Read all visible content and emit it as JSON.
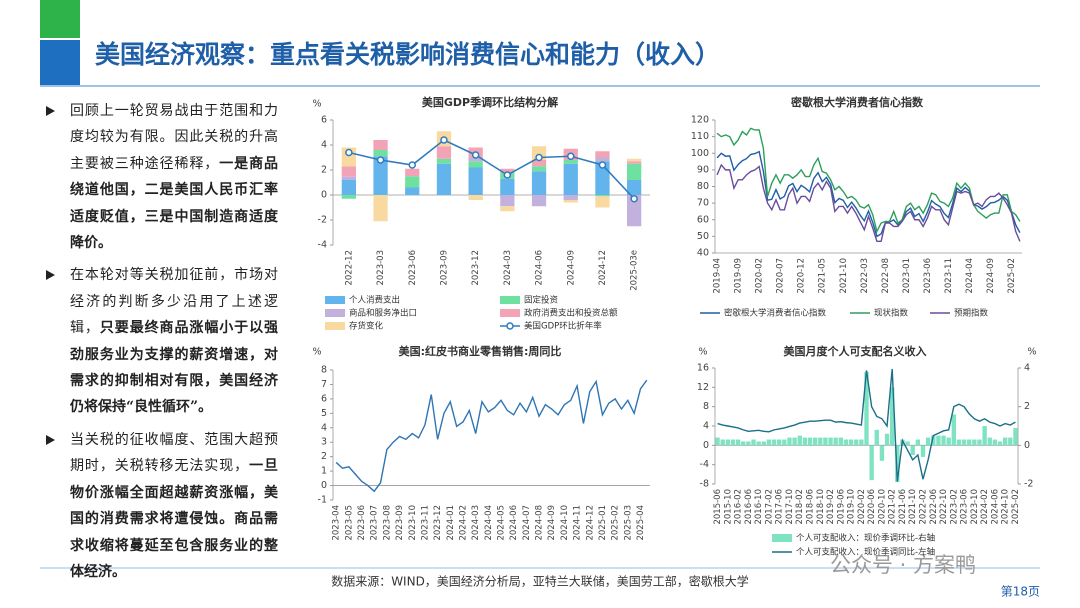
{
  "title": "美国经济观察：重点看关税影响消费信心和能力（收入）",
  "bullets": [
    {
      "runs": [
        {
          "text": "回顾上一轮贸易战由于范围和力度均较为有限。因此关税的升高主要被三种途径稀释，",
          "bold": false
        },
        {
          "text": "一是商品绕道他国，二是美国人民币汇率适度贬值，三是中国制造商适度降价。",
          "bold": true
        }
      ]
    },
    {
      "runs": [
        {
          "text": "在本轮对等关税加征前，市场对经济的判断多少沿用了上述逻辑，",
          "bold": false
        },
        {
          "text": "只要最终商品涨幅小于以强劲服务业为支撑的薪资增速，对需求的抑制相对有限，美国经济仍将保持“良性循环”。",
          "bold": true
        }
      ]
    },
    {
      "runs": [
        {
          "text": "当关税的征收幅度、范围大超预期时，关税转移无法实现，",
          "bold": false
        },
        {
          "text": "一旦物价涨幅全面超越薪资涨幅，美国的消费需求将遭侵蚀。商品需求收缩将蔓延至包含服务业的整体经济。",
          "bold": true
        }
      ]
    }
  ],
  "chart_data": [
    {
      "type": "bar",
      "title": "美国GDP季调环比结构分解",
      "y_unit": "%",
      "stacked": true,
      "categories": [
        "2022-12",
        "2023-03",
        "2023-06",
        "2023-09",
        "2023-12",
        "2024-03",
        "2024-06",
        "2024-09",
        "2024-12",
        "2025-03e"
      ],
      "ylim": [
        -4,
        6
      ],
      "yticks": [
        -4,
        -2,
        0,
        2,
        4,
        6
      ],
      "series": [
        {
          "name": "个人消费支出",
          "color": "#63b3ec",
          "values": [
            1.2,
            3.1,
            0.6,
            2.5,
            2.2,
            1.3,
            1.9,
            2.5,
            2.7,
            1.2
          ]
        },
        {
          "name": "固定投资",
          "color": "#6ee0a0",
          "values": [
            -0.3,
            0.5,
            0.9,
            0.4,
            0.5,
            0.5,
            0.4,
            0.3,
            -0.1,
            1.3
          ]
        },
        {
          "name": "商品和服务净出口",
          "color": "#c3b1dd",
          "values": [
            0.3,
            0.0,
            0.0,
            0.0,
            0.3,
            -0.9,
            -0.9,
            -0.4,
            0.3,
            -2.5
          ]
        },
        {
          "name": "政府消费支出和投资总额",
          "color": "#f2a3b5",
          "values": [
            0.8,
            0.8,
            0.6,
            1.0,
            0.8,
            0.3,
            0.5,
            0.9,
            0.5,
            0.2
          ]
        },
        {
          "name": "存货变化",
          "color": "#f8d9a0",
          "values": [
            1.5,
            -2.1,
            0.0,
            1.2,
            -0.4,
            -0.4,
            1.1,
            -0.2,
            -0.9,
            0.2
          ]
        },
        {
          "name": "美国GDP环比折年率",
          "color": "#2e7cc0",
          "type": "line",
          "marker": true,
          "values": [
            3.4,
            2.8,
            2.4,
            4.4,
            3.2,
            1.6,
            3.0,
            3.1,
            2.4,
            -0.3
          ]
        }
      ]
    },
    {
      "type": "line",
      "title": "密歇根大学消费者信心指数",
      "categories": [
        "2019-04",
        null,
        null,
        null,
        null,
        "2019-09",
        null,
        null,
        null,
        null,
        "2020-02",
        null,
        null,
        null,
        null,
        "2020-07",
        null,
        null,
        null,
        null,
        "2020-12",
        null,
        null,
        null,
        null,
        "2021-05",
        null,
        null,
        null,
        null,
        "2021-10",
        null,
        null,
        null,
        null,
        "2022-03",
        null,
        null,
        null,
        null,
        "2022-08",
        null,
        null,
        null,
        null,
        "2023-01",
        null,
        null,
        null,
        null,
        "2023-06",
        null,
        null,
        null,
        null,
        "2023-11",
        null,
        null,
        null,
        null,
        "2024-04",
        null,
        null,
        null,
        null,
        "2024-09",
        null,
        null,
        null,
        null,
        "2025-02",
        null,
        null
      ],
      "ylim": [
        40,
        120
      ],
      "yticks": [
        40,
        50,
        60,
        70,
        80,
        90,
        100,
        110,
        120
      ],
      "series": [
        {
          "name": "密歇根大学消费者信心指数",
          "color": "#1f5fa8",
          "values": [
            97.2,
            100.0,
            98.2,
            98.4,
            89.8,
            93.2,
            95.5,
            96.8,
            99.3,
            99.8,
            101.0,
            89.1,
            71.8,
            72.3,
            78.1,
            72.5,
            74.1,
            80.4,
            81.8,
            76.9,
            80.7,
            79.0,
            76.8,
            84.9,
            88.3,
            82.9,
            85.5,
            81.2,
            70.3,
            72.8,
            71.7,
            67.4,
            70.6,
            67.2,
            62.8,
            59.4,
            65.2,
            58.4,
            50.0,
            51.5,
            58.2,
            58.6,
            59.9,
            56.8,
            59.7,
            64.9,
            67.0,
            62.0,
            63.7,
            59.0,
            64.4,
            71.5,
            69.4,
            67.9,
            63.8,
            61.3,
            69.7,
            79.0,
            76.9,
            79.4,
            77.2,
            69.1,
            68.2,
            66.4,
            67.9,
            70.1,
            70.5,
            71.8,
            74.0,
            71.7,
            64.7,
            57.0,
            52.2
          ]
        },
        {
          "name": "现状指数",
          "color": "#2e9e5b",
          "values": [
            112,
            110,
            111,
            110,
            105,
            108,
            113,
            111,
            115,
            114,
            114,
            103,
            74,
            82,
            87,
            82,
            87,
            87,
            85,
            87,
            90,
            86,
            86,
            93,
            97,
            89,
            88,
            84,
            78,
            80,
            77,
            73,
            74,
            72,
            68,
            67,
            69,
            63,
            53,
            58,
            59,
            59,
            65,
            58,
            60,
            68,
            70,
            66,
            68,
            64,
            69,
            76,
            75,
            71,
            70,
            68,
            73,
            82,
            79,
            82,
            79,
            69,
            65,
            63,
            61,
            63,
            64,
            64,
            75,
            75,
            65,
            63,
            59
          ]
        },
        {
          "name": "预期指数",
          "color": "#6a4c9c",
          "values": [
            87,
            93,
            90,
            90,
            79,
            84,
            84,
            87,
            89,
            90,
            92,
            79,
            70,
            66,
            72,
            66,
            66,
            75,
            79,
            70,
            74,
            74,
            71,
            79,
            82,
            78,
            83,
            79,
            65,
            68,
            68,
            64,
            68,
            64,
            59,
            54,
            62,
            55,
            47,
            47,
            58,
            58,
            56,
            56,
            59,
            63,
            65,
            60,
            60,
            56,
            61,
            68,
            66,
            66,
            60,
            57,
            67,
            77,
            76,
            77,
            76,
            69,
            70,
            68,
            72,
            74,
            74,
            76,
            73,
            69,
            64,
            53,
            47
          ]
        }
      ]
    },
    {
      "type": "line",
      "title": "美国:红皮书商业零售销售:周同比",
      "y_unit": "%",
      "categories": [
        "2023-04",
        null,
        "2023-05",
        null,
        "2023-06",
        null,
        "2023-07",
        null,
        "2023-08",
        null,
        "2023-09",
        null,
        "2023-10",
        null,
        "2023-11",
        null,
        "2023-12",
        null,
        "2024-01",
        null,
        "2024-02",
        null,
        "2024-03",
        null,
        "2024-04",
        null,
        "2024-05",
        null,
        "2024-06",
        null,
        "2024-07",
        null,
        "2024-08",
        null,
        "2024-09",
        null,
        "2024-10",
        null,
        "2024-11",
        null,
        "2024-12",
        null,
        "2025-01",
        null,
        "2025-02",
        null,
        "2025-03",
        null,
        "2025-04",
        null
      ],
      "ylim": [
        -1,
        8
      ],
      "yticks": [
        -1,
        0,
        1,
        2,
        3,
        4,
        5,
        6,
        7,
        8
      ],
      "series": [
        {
          "name": "美国:红皮书商业零售销售:周同比",
          "color": "#2e75b6",
          "values": [
            1.6,
            1.2,
            1.3,
            0.8,
            0.3,
            0.0,
            -0.4,
            0.2,
            2.5,
            3.0,
            3.4,
            3.2,
            3.6,
            3.3,
            4.2,
            6.3,
            3.2,
            5.0,
            5.8,
            4.1,
            4.4,
            5.2,
            3.6,
            5.8,
            5.1,
            5.4,
            5.9,
            5.2,
            4.9,
            5.7,
            5.1,
            6.1,
            4.8,
            5.6,
            5.3,
            4.9,
            5.6,
            5.9,
            6.9,
            4.3,
            6.5,
            7.2,
            4.9,
            5.7,
            6.0,
            5.3,
            5.9,
            5.0,
            6.7,
            7.3
          ]
        }
      ]
    },
    {
      "type": "line",
      "title": "美国月度个人可支配名义收入",
      "y_unit": "%",
      "y2_unit": "%",
      "categories": [
        "2015-06",
        null,
        "2015-10",
        null,
        "2016-02",
        null,
        "2016-06",
        null,
        "2016-10",
        null,
        "2017-02",
        null,
        "2017-06",
        null,
        "2017-10",
        null,
        "2018-02",
        null,
        "2018-06",
        null,
        "2018-10",
        null,
        "2019-02",
        null,
        "2019-06",
        null,
        "2019-10",
        null,
        "2020-02",
        null,
        "2020-06",
        null,
        "2020-10",
        null,
        "2021-02",
        null,
        "2021-06",
        null,
        "2021-10",
        null,
        "2022-02",
        null,
        "2022-06",
        null,
        "2022-10",
        null,
        "2023-02",
        null,
        "2023-06",
        null,
        "2023-10",
        null,
        "2024-02",
        null,
        "2024-06",
        null,
        "2024-10",
        null,
        "2025-02"
      ],
      "ylim": [
        -8,
        16
      ],
      "yticks": [
        -8,
        -4,
        0,
        4,
        8,
        12,
        16
      ],
      "y2lim": [
        -2,
        4
      ],
      "y2ticks": [
        -2,
        0,
        2,
        4
      ],
      "series": [
        {
          "name": "个人可支配收入：现价季调环比-右轴",
          "color": "#7fe3c3",
          "type": "bar",
          "axis": "y2",
          "values": [
            0.4,
            0.3,
            0.3,
            0.3,
            0.3,
            0.2,
            0.2,
            0.3,
            0.2,
            0.2,
            0.3,
            0.3,
            0.3,
            0.3,
            0.4,
            0.4,
            0.5,
            0.4,
            0.4,
            0.4,
            0.4,
            0.4,
            0.4,
            0.4,
            0.4,
            0.3,
            0.3,
            0.3,
            0.3,
            3.8,
            -1.8,
            0.8,
            -0.8,
            0.6,
            3.0,
            -1.9,
            0.3,
            0.2,
            -0.5,
            0.3,
            -0.6,
            0.4,
            0.5,
            0.5,
            0.5,
            0.4,
            1.6,
            0.3,
            0.3,
            0.3,
            0.3,
            0.3,
            1.0,
            0.4,
            0.3,
            0.2,
            0.4,
            0.4,
            0.9
          ]
        },
        {
          "name": "个人可支配收入：现价季调同比-左轴",
          "color": "#1b6f8a",
          "values": [
            4.5,
            4.2,
            4.0,
            3.8,
            3.6,
            3.2,
            2.9,
            3.0,
            3.1,
            2.9,
            2.8,
            3.2,
            3.4,
            3.6,
            3.9,
            4.2,
            4.6,
            4.8,
            5.0,
            5.0,
            5.1,
            5.2,
            5.2,
            4.8,
            4.9,
            4.7,
            4.6,
            4.4,
            4.2,
            15.5,
            8.0,
            6.0,
            5.5,
            4.0,
            15.8,
            -7.5,
            1.0,
            -1.0,
            -3.0,
            -2.0,
            -7.0,
            -3.0,
            2.0,
            2.5,
            3.0,
            3.2,
            8.0,
            8.5,
            8.0,
            6.5,
            5.5,
            5.0,
            5.5,
            4.8,
            4.5,
            4.0,
            4.5,
            4.2,
            4.8
          ]
        }
      ]
    }
  ],
  "source": "数据来源：WIND，美国经济分析局，亚特兰大联储，美国劳工部，密歇根大学",
  "watermark": "公众号 · 方案鸭",
  "page_number": "第18页"
}
